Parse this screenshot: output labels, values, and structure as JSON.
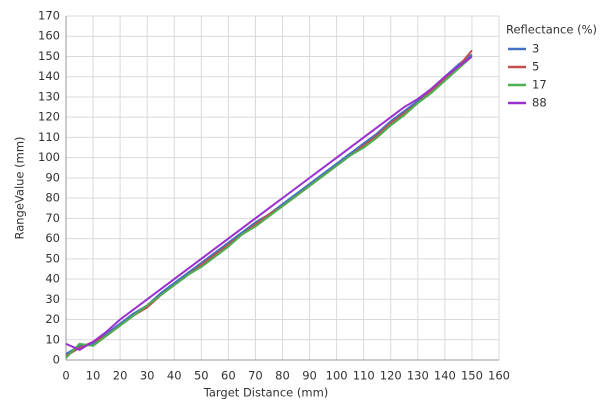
{
  "chart_data": {
    "type": "line",
    "x_label": "Target Distance (mm)",
    "y_label": "RangeValue (mm)",
    "legend_title": "Reflectance (%)",
    "legend": "right",
    "x": [
      0,
      5,
      10,
      15,
      20,
      25,
      30,
      35,
      40,
      45,
      50,
      55,
      60,
      65,
      70,
      75,
      80,
      85,
      90,
      95,
      100,
      105,
      110,
      115,
      120,
      125,
      130,
      135,
      140,
      145,
      150
    ],
    "series": [
      {
        "name": "3",
        "color": "#4472c4",
        "values": [
          3,
          7,
          8,
          13,
          18,
          23,
          27,
          33,
          38,
          43,
          48,
          53,
          58,
          63,
          68,
          72,
          77,
          82,
          87,
          92,
          97,
          102,
          107,
          112,
          118,
          123,
          128,
          134,
          140,
          146,
          151
        ]
      },
      {
        "name": "5",
        "color": "#c0504d",
        "values": [
          2,
          6,
          9,
          12,
          17,
          22,
          26,
          32,
          37,
          42,
          47,
          52,
          57,
          62,
          67,
          72,
          76,
          81,
          86,
          91,
          96,
          101,
          106,
          111,
          117,
          122,
          127,
          133,
          139,
          145,
          153
        ]
      },
      {
        "name": "17",
        "color": "#4caf50",
        "values": [
          1,
          8,
          7,
          12,
          17,
          22,
          27,
          32,
          37,
          42,
          46,
          51,
          56,
          62,
          66,
          71,
          76,
          81,
          86,
          91,
          96,
          101,
          105,
          110,
          116,
          121,
          127,
          132,
          138,
          144,
          150
        ]
      },
      {
        "name": "88",
        "color": "#9b30d0",
        "values": [
          8,
          5,
          9,
          14,
          20,
          25,
          30,
          35,
          40,
          45,
          50,
          55,
          60,
          65,
          70,
          75,
          80,
          85,
          90,
          95,
          100,
          105,
          110,
          115,
          120,
          125,
          129,
          134,
          140,
          145,
          150
        ]
      }
    ],
    "xlim": [
      0,
      160
    ],
    "xticks": [
      0,
      10,
      20,
      30,
      40,
      50,
      60,
      70,
      80,
      90,
      100,
      110,
      120,
      130,
      140,
      150,
      160
    ],
    "ylim": [
      0,
      170
    ],
    "yticks": [
      0,
      10,
      20,
      30,
      40,
      50,
      60,
      70,
      80,
      90,
      100,
      110,
      120,
      130,
      140,
      150,
      160,
      170
    ],
    "grid": true
  }
}
